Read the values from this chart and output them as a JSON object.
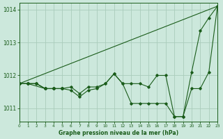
{
  "title": "Graphe pression niveau de la mer (hPa)",
  "bg_color": "#cce8dc",
  "grid_color": "#aaccbb",
  "line_color": "#1a5c1a",
  "xlim": [
    0,
    23
  ],
  "ylim": [
    1010.6,
    1014.2
  ],
  "xticks": [
    0,
    1,
    2,
    3,
    4,
    5,
    6,
    7,
    8,
    9,
    10,
    11,
    12,
    13,
    14,
    15,
    16,
    17,
    18,
    19,
    20,
    21,
    22,
    23
  ],
  "ytick_vals": [
    1011,
    1012,
    1013,
    1014
  ],
  "straight_line": [
    [
      0,
      1011.75
    ],
    [
      23,
      1014.1
    ]
  ],
  "series": [
    {
      "x": [
        0,
        1,
        2,
        3,
        4,
        5,
        6,
        7,
        8,
        9,
        10,
        11,
        12,
        13,
        14,
        15,
        16,
        17,
        18,
        19,
        20,
        21,
        22,
        23
      ],
      "y": [
        1011.75,
        1011.75,
        1011.75,
        1011.6,
        1011.6,
        1011.6,
        1011.55,
        1011.35,
        1011.55,
        1011.6,
        1011.75,
        1012.05,
        1011.75,
        1011.15,
        1011.15,
        1011.15,
        1011.15,
        1011.15,
        1010.75,
        1010.75,
        1011.6,
        1011.6,
        1012.1,
        1014.1
      ],
      "marker": "D"
    },
    {
      "x": [
        0,
        1,
        2,
        3,
        4,
        5,
        6,
        7,
        8,
        9,
        10,
        11,
        12,
        13,
        14,
        15,
        16,
        17,
        18,
        19,
        20,
        21,
        22,
        23
      ],
      "y": [
        1011.75,
        1011.75,
        1011.75,
        1011.6,
        1011.6,
        1011.6,
        1011.65,
        1011.45,
        1011.65,
        1011.65,
        1011.75,
        1012.05,
        1011.75,
        1011.75,
        1011.75,
        1011.65,
        1012.0,
        1012.0,
        1010.75,
        1010.75,
        1012.1,
        1013.35,
        1013.75,
        1014.1
      ],
      "marker": "D"
    },
    {
      "x": [
        0,
        1,
        2,
        3,
        4,
        5
      ],
      "y": [
        1011.75,
        1011.75,
        1011.75,
        1011.6,
        1011.6,
        1011.6
      ],
      "marker": "D"
    },
    {
      "x": [
        0,
        1,
        3,
        4,
        5
      ],
      "y": [
        1011.75,
        1011.75,
        1011.6,
        1011.6,
        1011.6
      ],
      "marker": "D"
    }
  ]
}
